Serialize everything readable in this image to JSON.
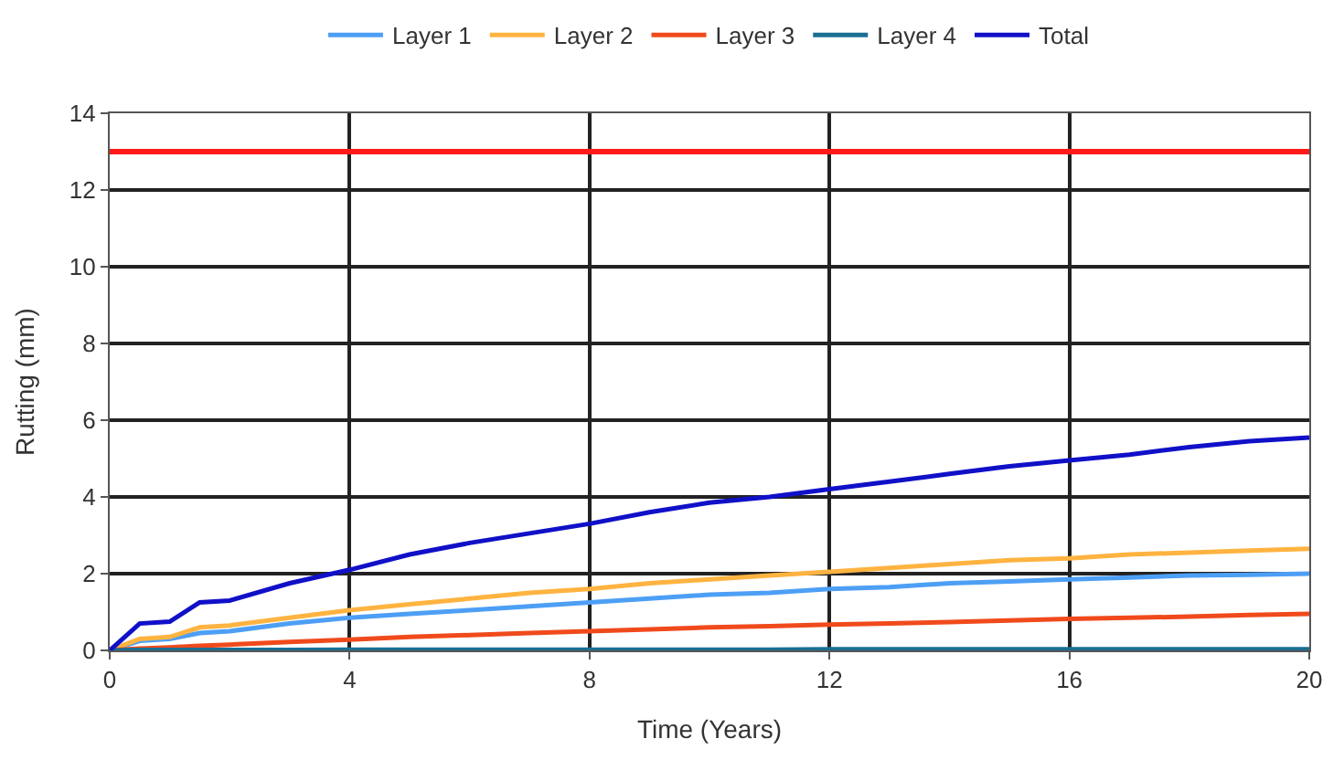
{
  "chart_data": {
    "type": "line",
    "xlabel": "Time (Years)",
    "ylabel": "Rutting (mm)",
    "x": [
      0,
      0.5,
      1,
      1.5,
      2,
      3,
      4,
      5,
      6,
      7,
      8,
      9,
      10,
      11,
      12,
      13,
      14,
      15,
      16,
      17,
      18,
      19,
      20
    ],
    "series": [
      {
        "name": "Layer 1",
        "color": "#4d9ff5",
        "values": [
          0,
          0.25,
          0.3,
          0.45,
          0.5,
          0.7,
          0.85,
          0.95,
          1.05,
          1.15,
          1.25,
          1.35,
          1.45,
          1.5,
          1.6,
          1.65,
          1.75,
          1.8,
          1.85,
          1.9,
          1.95,
          1.97,
          2.0
        ]
      },
      {
        "name": "Layer 2",
        "color": "#ffb340",
        "values": [
          0,
          0.3,
          0.35,
          0.6,
          0.65,
          0.85,
          1.05,
          1.2,
          1.35,
          1.5,
          1.6,
          1.75,
          1.85,
          1.95,
          2.05,
          2.15,
          2.25,
          2.35,
          2.4,
          2.5,
          2.55,
          2.6,
          2.65
        ]
      },
      {
        "name": "Layer 3",
        "color": "#f04a1c",
        "values": [
          0,
          0.05,
          0.08,
          0.12,
          0.15,
          0.22,
          0.28,
          0.35,
          0.4,
          0.45,
          0.5,
          0.55,
          0.6,
          0.63,
          0.67,
          0.7,
          0.74,
          0.78,
          0.82,
          0.85,
          0.88,
          0.92,
          0.95
        ]
      },
      {
        "name": "Layer 4",
        "color": "#1a6e91",
        "values": [
          0,
          0.01,
          0.01,
          0.01,
          0.01,
          0.01,
          0.02,
          0.02,
          0.02,
          0.02,
          0.02,
          0.02,
          0.02,
          0.02,
          0.03,
          0.03,
          0.03,
          0.03,
          0.03,
          0.03,
          0.03,
          0.03,
          0.03
        ]
      },
      {
        "name": "Total",
        "color": "#1010c8",
        "values": [
          0,
          0.7,
          0.75,
          1.25,
          1.3,
          1.75,
          2.1,
          2.5,
          2.8,
          3.05,
          3.3,
          3.6,
          3.85,
          4.0,
          4.2,
          4.4,
          4.6,
          4.8,
          4.95,
          5.1,
          5.3,
          5.45,
          5.55
        ]
      }
    ],
    "ref_lines": [
      {
        "axis": "y",
        "value": 13,
        "color": "#ff1a1a"
      }
    ],
    "xlim": [
      0,
      20
    ],
    "xticks": [
      0,
      4,
      8,
      12,
      16,
      20
    ],
    "ylim": [
      0,
      14
    ],
    "yticks": [
      0,
      2,
      4,
      6,
      8,
      10,
      12,
      14
    ],
    "grid": true,
    "legend": "top",
    "marker": "none",
    "line_style": "solid"
  }
}
